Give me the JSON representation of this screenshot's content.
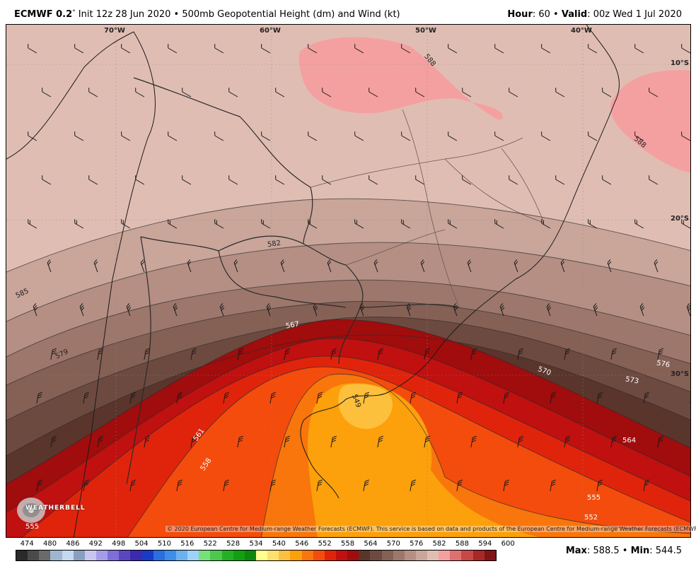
{
  "header": {
    "model": "ECMWF 0.2",
    "degree_mark": "°",
    "init": " Init 12z 28 Jun 2020 • 500mb Geopotential Height (dm) and Wind (kt)",
    "hour_label": "Hour",
    "hour_value": ": 60 • ",
    "valid_label": "Valid",
    "valid_value": ": 00z Wed 1 Jul 2020"
  },
  "map": {
    "longitude_labels": [
      "70°W",
      "60°W",
      "50°W",
      "40°W"
    ],
    "latitude_labels": [
      "10°S",
      "20°S",
      "30°S"
    ],
    "contour_labels": [
      "588",
      "588",
      "585",
      "582",
      "579",
      "576",
      "573",
      "570",
      "567",
      "564",
      "561",
      "558",
      "555",
      "555",
      "552",
      "549"
    ],
    "colors": {
      "h588": "#f4a0a0",
      "h585": "#e0bdb3",
      "h582": "#c9a59a",
      "h579": "#b58f84",
      "h576": "#9d776c",
      "h573": "#856055",
      "h570": "#6d4a40",
      "h567": "#5a352c",
      "h564": "#a10c0c",
      "h561": "#c01010",
      "h558": "#e0240c",
      "h555": "#f44c0c",
      "h552": "#f8760c",
      "h549": "#fca00c",
      "h546": "#fdc03c"
    }
  },
  "copyright": "© 2020 European Centre for Medium-range Weather Forecasts (ECMWF). This service is based on data and products of the European Centre for Medium-range Weather Forecasts (ECMWF).",
  "logo": {
    "text": "WEATHERBELL"
  },
  "colorbar": {
    "labels": [
      "474",
      "480",
      "486",
      "492",
      "498",
      "504",
      "510",
      "516",
      "522",
      "528",
      "534",
      "540",
      "546",
      "552",
      "558",
      "564",
      "570",
      "576",
      "582",
      "588",
      "594",
      "600"
    ],
    "colors": [
      "#2a2a2a",
      "#4a4a4a",
      "#6a6a6a",
      "#9fb6d0",
      "#c4d8ee",
      "#8a9fc0",
      "#c8c6f0",
      "#a49ce8",
      "#7e6ed8",
      "#5a46c0",
      "#3a2ab0",
      "#1a3ac8",
      "#2a6ee0",
      "#3c8eea",
      "#6cb0f0",
      "#9ed2f6",
      "#78e078",
      "#4cc84c",
      "#24b024",
      "#10a010",
      "#0c880c",
      "#ffff90",
      "#fce070",
      "#fcc040",
      "#fca00c",
      "#f8760c",
      "#f44c0c",
      "#e0240c",
      "#c01010",
      "#a10c0c",
      "#5a352c",
      "#6d4a40",
      "#856055",
      "#9d776c",
      "#b58f84",
      "#c9a59a",
      "#e0bdb3",
      "#f4a0a0",
      "#e07070",
      "#c84848",
      "#a82828",
      "#801414"
    ]
  },
  "stats": {
    "max_label": "Max",
    "max_value": ": 588.5 • ",
    "min_label": "Min",
    "min_value": ": 544.5"
  }
}
